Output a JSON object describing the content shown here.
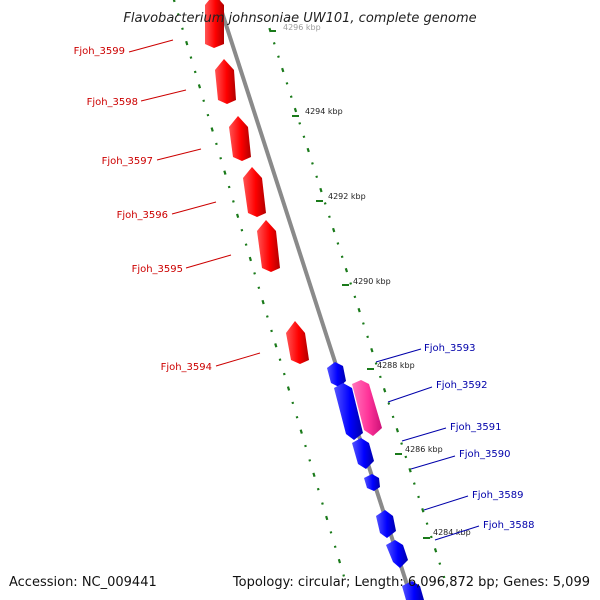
{
  "title": "Flavobacterium johnsoniae UW101, complete genome",
  "footer": {
    "accession": "Accession: NC_009441",
    "summary": "Topology: circular; Length: 6,096,872 bp; Genes: 5,099"
  },
  "ticks": [
    "4296 kbp",
    "4294 kbp",
    "4292 kbp",
    "4290 kbp",
    "4288 kbp",
    "4286 kbp",
    "4284 kbp"
  ],
  "genes_reverse": [
    "Fjoh_3599",
    "Fjoh_3598",
    "Fjoh_3597",
    "Fjoh_3596",
    "Fjoh_3595",
    "Fjoh_3594"
  ],
  "genes_forward": [
    "Fjoh_3593",
    "Fjoh_3592",
    "Fjoh_3591",
    "Fjoh_3590",
    "Fjoh_3589",
    "Fjoh_3588"
  ],
  "colors": {
    "reverse_strand": "#ff0000",
    "forward_strand": "#0000ff",
    "rna_feature": "#ff3399",
    "reverse_label": "#cc0000",
    "forward_label": "#0000aa",
    "backbone": "#888888",
    "gc_dots": "#1a7a1a"
  }
}
